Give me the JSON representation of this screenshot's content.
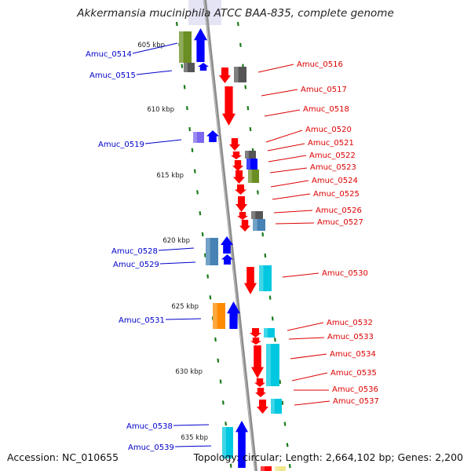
{
  "title": "Akkermansia muciniphila ATCC BAA-835, complete genome",
  "footer": {
    "accession": "Accession: NC_010655",
    "summary": "Topology: circular; Length: 2,664,102 bp; Genes: 2,200"
  },
  "colors": {
    "backbone": "#888888",
    "tick": "#1a7a1a",
    "label_left": "#0000cc",
    "label_right": "#dd0000",
    "red": "#ff0000",
    "blue": "#0000ff",
    "gray": "#555555",
    "olive": "#6b8e23",
    "steelblue": "#4682b4",
    "lavender": "#7b68ee",
    "cyan": "#00c8e0",
    "orange": "#ff8c00",
    "yellow": "#f0e68c"
  },
  "scale": [
    {
      "text": "605 kbp"
    },
    {
      "text": "610 kbp"
    },
    {
      "text": "615 kbp"
    },
    {
      "text": "620 kbp"
    },
    {
      "text": "625 kbp"
    },
    {
      "text": "630 kbp"
    },
    {
      "text": "635 kbp"
    }
  ],
  "labels_left": [
    {
      "name": "Amuc_0514"
    },
    {
      "name": "Amuc_0515"
    },
    {
      "name": "Amuc_0519"
    },
    {
      "name": "Amuc_0528"
    },
    {
      "name": "Amuc_0529"
    },
    {
      "name": "Amuc_0531"
    },
    {
      "name": "Amuc_0538"
    },
    {
      "name": "Amuc_0539"
    }
  ],
  "labels_right": [
    {
      "name": "Amuc_0516"
    },
    {
      "name": "Amuc_0517"
    },
    {
      "name": "Amuc_0518"
    },
    {
      "name": "Amuc_0520"
    },
    {
      "name": "Amuc_0521"
    },
    {
      "name": "Amuc_0522"
    },
    {
      "name": "Amuc_0523"
    },
    {
      "name": "Amuc_0524"
    },
    {
      "name": "Amuc_0525"
    },
    {
      "name": "Amuc_0526"
    },
    {
      "name": "Amuc_0527"
    },
    {
      "name": "Amuc_0530"
    },
    {
      "name": "Amuc_0532"
    },
    {
      "name": "Amuc_0533"
    },
    {
      "name": "Amuc_0534"
    },
    {
      "name": "Amuc_0535"
    },
    {
      "name": "Amuc_0536"
    },
    {
      "name": "Amuc_0537"
    }
  ]
}
